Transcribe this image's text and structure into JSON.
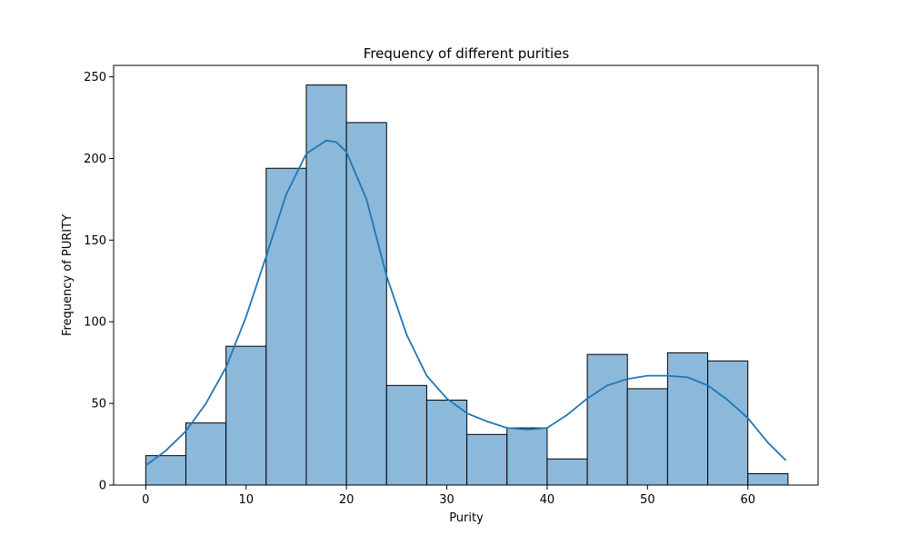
{
  "chart_data": {
    "type": "bar",
    "subtype": "histogram_with_kde",
    "title": "Frequency of different purities",
    "xlabel": "Purity",
    "ylabel": "Frequency of PURITY",
    "xlim": [
      -3.2,
      67.0
    ],
    "ylim": [
      0,
      257
    ],
    "xticks": [
      0,
      10,
      20,
      30,
      40,
      50,
      60
    ],
    "yticks": [
      0,
      50,
      100,
      150,
      200,
      250
    ],
    "bin_width": 4,
    "bins": [
      {
        "x0": 0,
        "x1": 4,
        "count": 18
      },
      {
        "x0": 4,
        "x1": 8,
        "count": 38
      },
      {
        "x0": 8,
        "x1": 12,
        "count": 85
      },
      {
        "x0": 12,
        "x1": 16,
        "count": 194
      },
      {
        "x0": 16,
        "x1": 20,
        "count": 245
      },
      {
        "x0": 20,
        "x1": 24,
        "count": 222
      },
      {
        "x0": 24,
        "x1": 28,
        "count": 61
      },
      {
        "x0": 28,
        "x1": 32,
        "count": 52
      },
      {
        "x0": 32,
        "x1": 36,
        "count": 31
      },
      {
        "x0": 36,
        "x1": 40,
        "count": 35
      },
      {
        "x0": 40,
        "x1": 44,
        "count": 16
      },
      {
        "x0": 44,
        "x1": 48,
        "count": 80
      },
      {
        "x0": 48,
        "x1": 52,
        "count": 59
      },
      {
        "x0": 52,
        "x1": 56,
        "count": 81
      },
      {
        "x0": 56,
        "x1": 60,
        "count": 76
      },
      {
        "x0": 60,
        "x1": 64,
        "count": 7
      }
    ],
    "kde": {
      "x": [
        0,
        2,
        4,
        6,
        8,
        10,
        12,
        14,
        16,
        18,
        19,
        20,
        22,
        24,
        26,
        28,
        30,
        32,
        34,
        36,
        38,
        40,
        42,
        44,
        46,
        48,
        50,
        52,
        54,
        56,
        58,
        60,
        62,
        63.8
      ],
      "y": [
        12,
        21,
        33,
        50,
        72,
        103,
        140,
        178,
        203,
        211,
        210,
        204,
        175,
        128,
        92,
        67,
        53,
        44,
        39,
        35,
        34,
        35,
        43,
        53,
        61,
        65,
        67,
        67,
        66,
        61,
        52,
        41,
        26,
        15
      ]
    },
    "colors": {
      "bar_fill": "#8cb8da",
      "bar_edge": "#000000",
      "kde_line": "#1f77b4"
    }
  }
}
